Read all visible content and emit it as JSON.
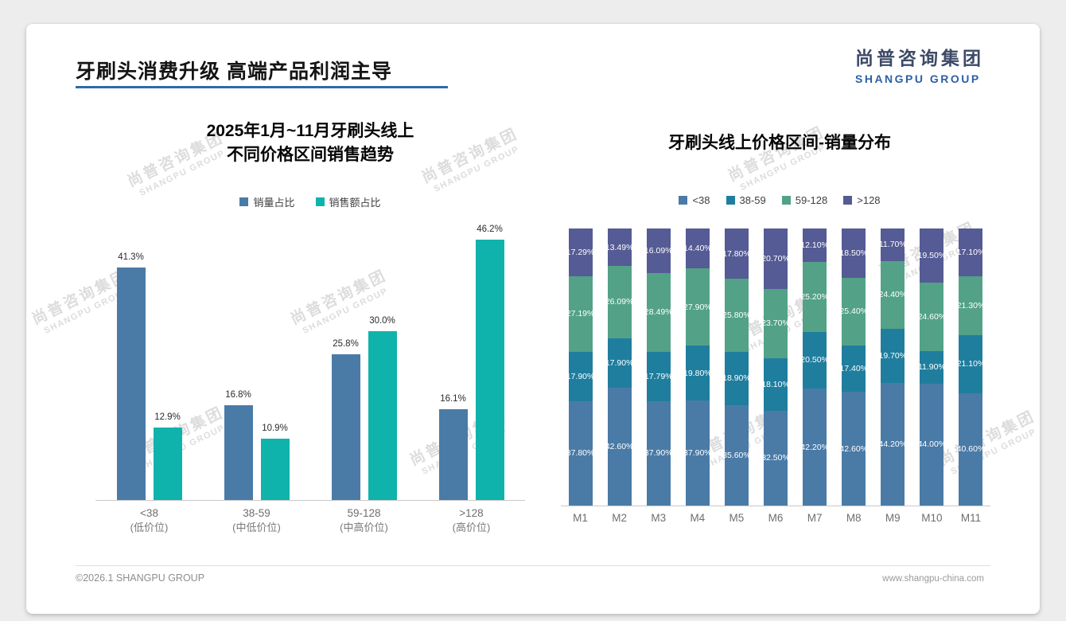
{
  "header": {
    "title": "牙刷头消费升级 高端产品利润主导",
    "underline_color": "#2e6ba8",
    "logo_cn": "尚普咨询集团",
    "logo_en": "SHANGPU GROUP"
  },
  "watermark": {
    "line1": "尚普咨询集团",
    "line2": "SHANGPU GROUP"
  },
  "footer": {
    "left": "©2026.1 SHANGPU GROUP",
    "right": "www.shangpu-china.com"
  },
  "colors": {
    "bar_blue": "#4a7ba6",
    "bar_teal": "#0fb3ab",
    "seg_teal_dark": "#1f7e9e",
    "seg_green": "#53a287",
    "seg_slate": "#555b94",
    "axis": "#c9c9c9",
    "accent_underline": "#2e6ba8"
  },
  "chart_data": [
    {
      "type": "bar",
      "stacked": false,
      "title": "2025年1月~11月牙刷头线上 不同价格区间销售趋势",
      "title_lines": [
        "2025年1月~11月牙刷头线上",
        "不同价格区间销售趋势"
      ],
      "categories": [
        "<38",
        "38-59",
        "59-128",
        ">128"
      ],
      "category_sublabels": [
        "(低价位)",
        "(中低价位)",
        "(中高价位)",
        "(高价位)"
      ],
      "series": [
        {
          "name": "销量占比",
          "color": "#4a7ba6",
          "values": [
            41.3,
            16.8,
            25.8,
            16.1
          ]
        },
        {
          "name": "销售额占比",
          "color": "#0fb3ab",
          "values": [
            12.9,
            10.9,
            30.0,
            46.2
          ]
        }
      ],
      "value_suffix": "%",
      "value_decimals": 1,
      "ylim": [
        0,
        48
      ],
      "grid": false,
      "legend_position": "top"
    },
    {
      "type": "bar",
      "stacked": true,
      "percent_stacked": true,
      "title": "牙刷头线上价格区间-销量分布",
      "categories": [
        "M1",
        "M2",
        "M3",
        "M4",
        "M5",
        "M6",
        "M7",
        "M8",
        "M9",
        "M10",
        "M11"
      ],
      "series": [
        {
          "name": "<38",
          "color": "#4a7ba6",
          "values": [
            37.8,
            42.6,
            37.9,
            37.9,
            35.6,
            32.5,
            42.2,
            42.6,
            44.2,
            44.0,
            40.6
          ]
        },
        {
          "name": "38-59",
          "color": "#1f7e9e",
          "values": [
            17.9,
            17.9,
            17.79,
            19.8,
            18.9,
            18.1,
            20.5,
            17.4,
            19.7,
            11.9,
            21.1
          ]
        },
        {
          "name": "59-128",
          "color": "#53a287",
          "values": [
            27.19,
            26.09,
            28.49,
            27.9,
            25.8,
            23.7,
            25.2,
            25.4,
            24.4,
            24.6,
            21.3
          ]
        },
        {
          "name": ">128",
          "color": "#555b94",
          "values": [
            17.29,
            13.49,
            16.09,
            14.4,
            17.8,
            20.7,
            12.1,
            18.5,
            11.7,
            19.5,
            17.1
          ]
        }
      ],
      "value_suffix": "%",
      "value_decimals": 2,
      "grid": false,
      "legend_position": "top"
    }
  ]
}
